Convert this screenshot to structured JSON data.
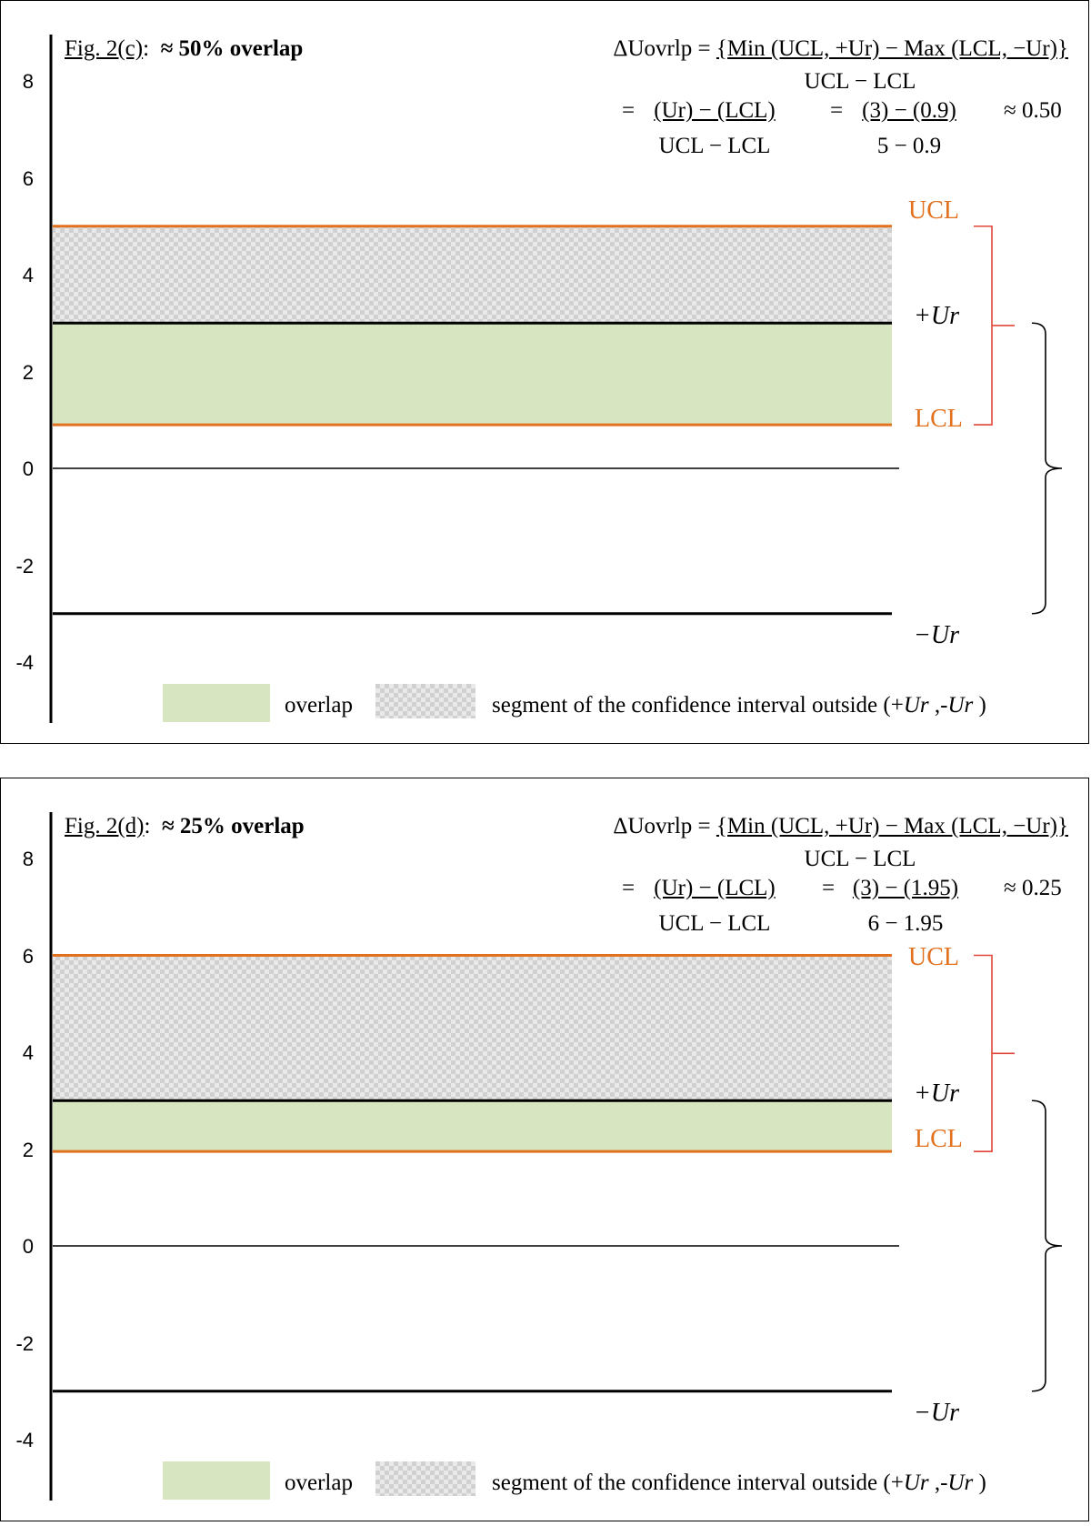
{
  "chart_data": [
    {
      "type": "area",
      "fig_label": "Fig. 2(c)",
      "fig_sep": ":",
      "title": "≈ 50% overlap",
      "ylim": [
        -4.6,
        9.0
      ],
      "yticks": [
        8,
        6,
        4,
        2,
        0,
        -2,
        -4
      ],
      "grid": false,
      "levels": {
        "UCL": 5.0,
        "plus_ur": 3.0,
        "LCL": 0.9,
        "zero": 0,
        "minus_ur": -3.0
      },
      "regions": [
        {
          "name": "segment of the confidence interval outside (+Ur ,-Ur )",
          "from": 3.0,
          "to": 5.0
        },
        {
          "name": "overlap",
          "from": 0.9,
          "to": 3.0
        }
      ],
      "equation": {
        "lhs": "ΔUovrlp = ",
        "num": "{Min (UCL, +Ur) − Max (LCL, −Ur)}",
        "den": "UCL − LCL",
        "step1_eq": "= ",
        "step1_num": "(Ur) − (LCL)",
        "step1_den": "UCL − LCL",
        "step2_eq": "= ",
        "step2_num": "(3) − (0.9)",
        "step2_den": "5 − 0.9",
        "result": "≈ 0.50"
      },
      "line_labels": {
        "UCL": "UCL",
        "plus_ur": "+Ur",
        "LCL": "LCL",
        "minus_ur": "−Ur"
      },
      "legend": {
        "overlap": "overlap",
        "outside_pre": "segment of the confidence interval outside (+",
        "outside_ur1": "Ur",
        "outside_mid": " ,-",
        "outside_ur2": "Ur",
        "outside_post": " )"
      },
      "colors": {
        "limits": "#e1711f",
        "bracket_ci": "#e1453a",
        "bracket_ur": "#000000",
        "overlap": "#d7e5c0",
        "outside_light": "#e9e9e9",
        "outside_dark": "#d0d0d0"
      }
    },
    {
      "type": "area",
      "fig_label": "Fig. 2(d)",
      "fig_sep": ":",
      "title": "≈ 25% overlap",
      "ylim": [
        -4.6,
        9.0
      ],
      "yticks": [
        8,
        6,
        4,
        2,
        0,
        -2,
        -4
      ],
      "grid": false,
      "levels": {
        "UCL": 6.0,
        "plus_ur": 3.0,
        "LCL": 1.95,
        "zero": 0,
        "minus_ur": -3.0
      },
      "regions": [
        {
          "name": "segment of the confidence interval outside (+Ur ,-Ur )",
          "from": 3.0,
          "to": 6.0
        },
        {
          "name": "overlap",
          "from": 1.95,
          "to": 3.0
        }
      ],
      "equation": {
        "lhs": "ΔUovrlp = ",
        "num": "{Min (UCL, +Ur) − Max (LCL, −Ur)}",
        "den": "UCL − LCL",
        "step1_eq": "= ",
        "step1_num": "(Ur) − (LCL)",
        "step1_den": "UCL − LCL",
        "step2_eq": "= ",
        "step2_num": "(3) − (1.95)",
        "step2_den": "6 − 1.95",
        "result": "≈ 0.25"
      },
      "line_labels": {
        "UCL": "UCL",
        "plus_ur": "+Ur",
        "LCL": "LCL",
        "minus_ur": "−Ur"
      },
      "legend": {
        "overlap": "overlap",
        "outside_pre": "segment of the confidence interval outside (+",
        "outside_ur1": "Ur",
        "outside_mid": " ,-",
        "outside_ur2": "Ur",
        "outside_post": " )"
      },
      "colors": {
        "limits": "#e1711f",
        "bracket_ci": "#e1453a",
        "bracket_ur": "#000000",
        "overlap": "#d7e5c0",
        "outside_light": "#e9e9e9",
        "outside_dark": "#d0d0d0"
      }
    }
  ]
}
